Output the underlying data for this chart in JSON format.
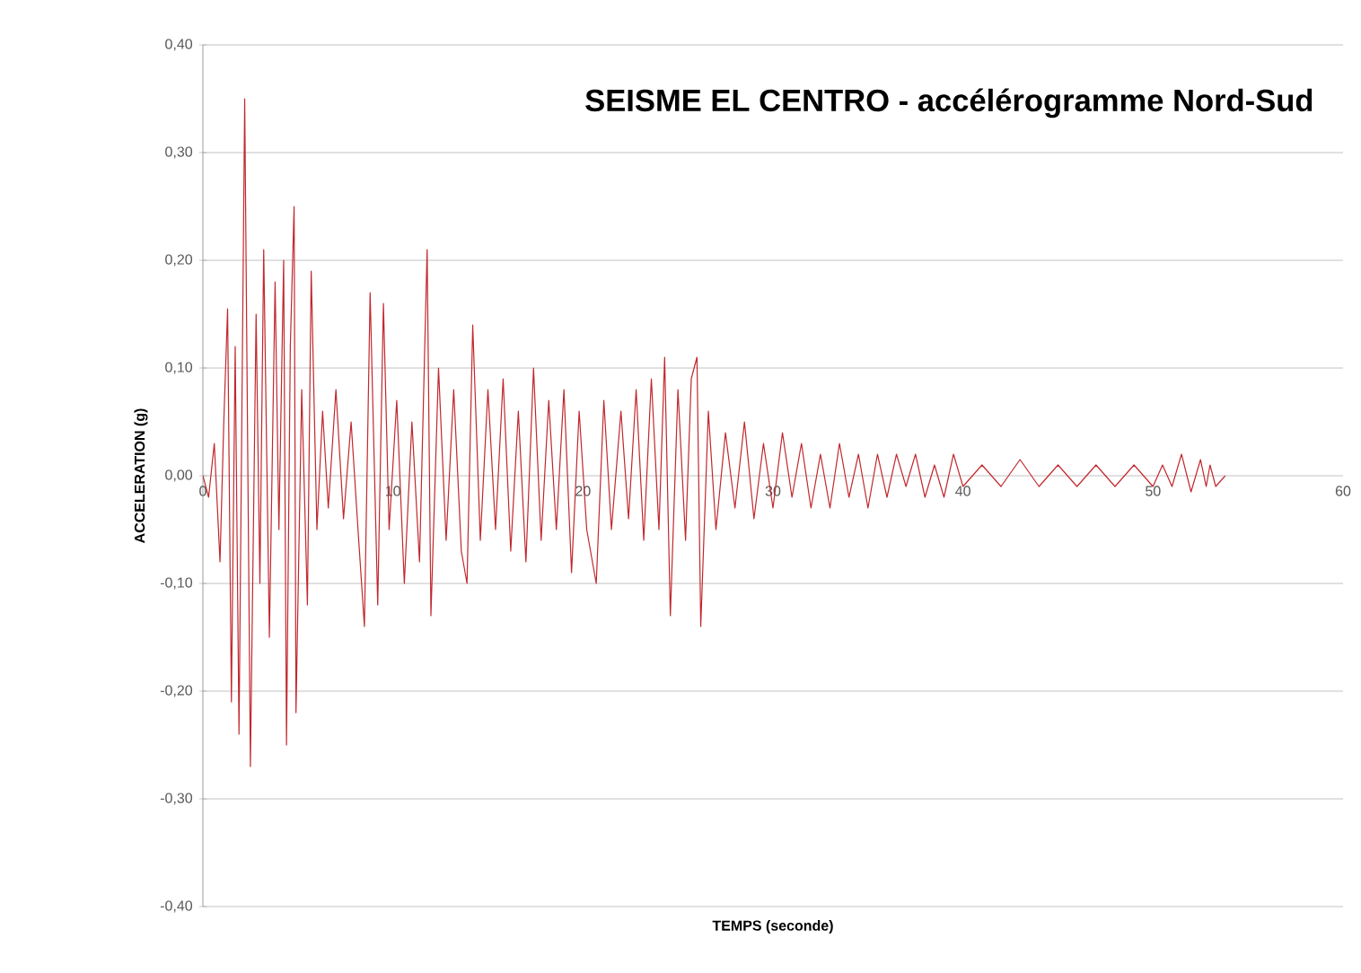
{
  "chart_data": {
    "type": "line",
    "title": "SEISME EL CENTRO - accélérogramme Nord-Sud",
    "xlabel": "TEMPS (seconde)",
    "ylabel": "ACCELERATION (g)",
    "x": [
      0,
      0.3,
      0.6,
      0.9,
      1.1,
      1.3,
      1.5,
      1.7,
      1.9,
      2.2,
      2.5,
      2.8,
      3.0,
      3.2,
      3.5,
      3.8,
      4.0,
      4.25,
      4.4,
      4.6,
      4.8,
      4.9,
      5.2,
      5.5,
      5.7,
      6.0,
      6.3,
      6.6,
      7.0,
      7.4,
      7.8,
      8.2,
      8.5,
      8.8,
      9.2,
      9.5,
      9.8,
      10.2,
      10.6,
      11.0,
      11.4,
      11.8,
      12.0,
      12.4,
      12.8,
      13.2,
      13.6,
      13.9,
      14.2,
      14.6,
      15.0,
      15.4,
      15.8,
      16.2,
      16.6,
      17.0,
      17.4,
      17.8,
      18.2,
      18.6,
      19.0,
      19.4,
      19.8,
      20.2,
      20.7,
      21.1,
      21.5,
      22.0,
      22.4,
      22.8,
      23.2,
      23.6,
      24.0,
      24.3,
      24.6,
      25.0,
      25.4,
      25.7,
      26.0,
      26.2,
      26.6,
      27.0,
      27.5,
      28.0,
      28.5,
      29.0,
      29.5,
      30.0,
      30.5,
      31.0,
      31.5,
      32.0,
      32.5,
      33.0,
      33.5,
      34.0,
      34.5,
      35.0,
      35.5,
      36.0,
      36.5,
      37.0,
      37.5,
      38.0,
      38.5,
      39.0,
      39.5,
      40.0,
      41.0,
      42.0,
      43.0,
      44.0,
      45.0,
      46.0,
      47.0,
      48.0,
      49.0,
      50.0,
      50.5,
      51.0,
      51.5,
      52.0,
      52.5,
      52.8,
      53.0,
      53.3,
      53.8
    ],
    "series": [
      {
        "color": "#c0282e",
        "values": [
          0,
          -0.02,
          0.03,
          -0.08,
          0.05,
          0.155,
          -0.21,
          0.12,
          -0.24,
          0.35,
          -0.27,
          0.15,
          -0.1,
          0.21,
          -0.15,
          0.18,
          -0.05,
          0.2,
          -0.25,
          0.12,
          0.25,
          -0.22,
          0.08,
          -0.12,
          0.19,
          -0.05,
          0.06,
          -0.03,
          0.08,
          -0.04,
          0.05,
          -0.06,
          -0.14,
          0.17,
          -0.12,
          0.16,
          -0.05,
          0.07,
          -0.1,
          0.05,
          -0.08,
          0.21,
          -0.13,
          0.1,
          -0.06,
          0.08,
          -0.07,
          -0.1,
          0.14,
          -0.06,
          0.08,
          -0.05,
          0.09,
          -0.07,
          0.06,
          -0.08,
          0.1,
          -0.06,
          0.07,
          -0.05,
          0.08,
          -0.09,
          0.06,
          -0.05,
          -0.1,
          0.07,
          -0.05,
          0.06,
          -0.04,
          0.08,
          -0.06,
          0.09,
          -0.05,
          0.11,
          -0.13,
          0.08,
          -0.06,
          0.09,
          0.11,
          -0.14,
          0.06,
          -0.05,
          0.04,
          -0.03,
          0.05,
          -0.04,
          0.03,
          -0.03,
          0.04,
          -0.02,
          0.03,
          -0.03,
          0.02,
          -0.03,
          0.03,
          -0.02,
          0.02,
          -0.03,
          0.02,
          -0.02,
          0.02,
          -0.01,
          0.02,
          -0.02,
          0.01,
          -0.02,
          0.02,
          -0.01,
          0.01,
          -0.01,
          0.015,
          -0.01,
          0.01,
          -0.01,
          0.01,
          -0.01,
          0.01,
          -0.01,
          0.01,
          -0.01,
          0.02,
          -0.015,
          0.015,
          -0.01,
          0.01,
          -0.01,
          0
        ]
      }
    ],
    "xlim": [
      0,
      60
    ],
    "xticks": [
      0,
      10,
      20,
      30,
      40,
      50,
      60
    ],
    "ylim": [
      -0.4,
      0.4
    ],
    "yticks": [
      {
        "value": -0.4,
        "label": "-0,40"
      },
      {
        "value": -0.3,
        "label": "-0,30"
      },
      {
        "value": -0.2,
        "label": "-0,20"
      },
      {
        "value": -0.1,
        "label": "-0,10"
      },
      {
        "value": 0,
        "label": "0,00"
      },
      {
        "value": 0.1,
        "label": "0,10"
      },
      {
        "value": 0.2,
        "label": "0,20"
      },
      {
        "value": 0.3,
        "label": "0,30"
      },
      {
        "value": 0.4,
        "label": "0,40"
      }
    ],
    "grid": "y"
  }
}
